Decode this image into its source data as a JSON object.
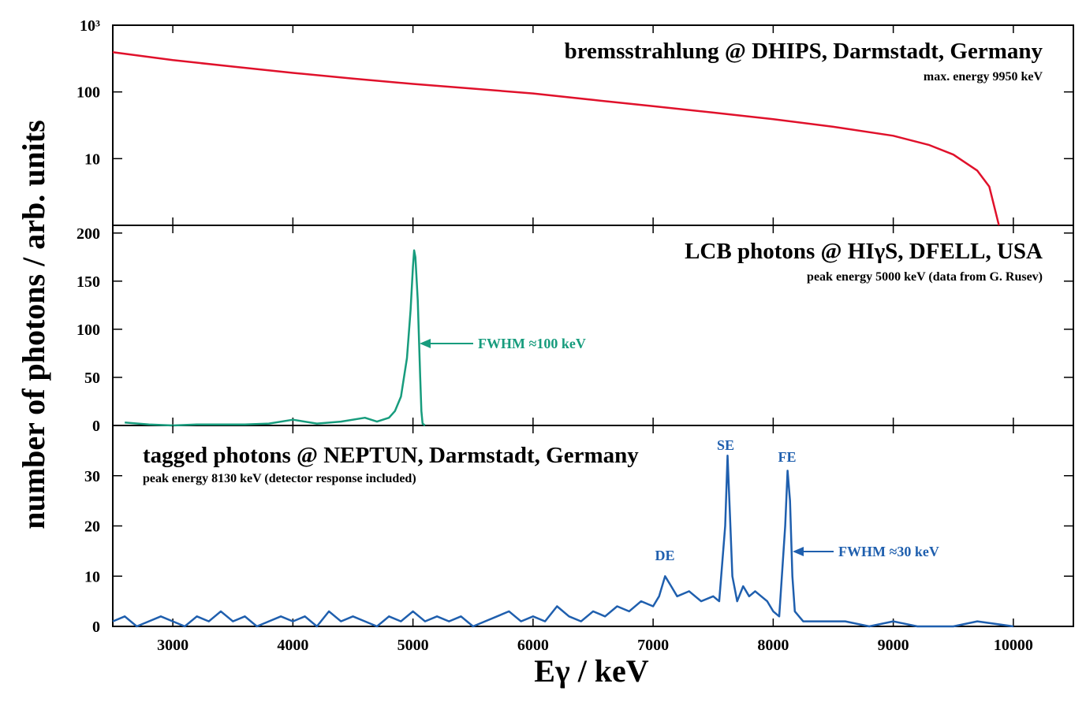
{
  "xlabel": "Eγ / keV",
  "ylabel": "number of photons / arb. units",
  "chart_data": [
    {
      "type": "line",
      "title": "bremsstrahlung @ DHIPS, Darmstadt, Germany",
      "subtitle": "max. energy 9950 keV",
      "log_scale": true,
      "color": "#e0112b",
      "xlim": [
        2500,
        10500
      ],
      "ylim": [
        1,
        1000
      ],
      "yticks": [
        {
          "value": 1000,
          "label": "10³"
        },
        100,
        10
      ],
      "x": [
        2500,
        3000,
        3500,
        4000,
        4500,
        5000,
        5500,
        6000,
        6500,
        7000,
        7500,
        8000,
        8500,
        9000,
        9300,
        9500,
        9700,
        9800,
        9880
      ],
      "values": [
        394,
        300,
        240,
        193,
        158,
        132,
        112,
        95,
        76,
        61,
        49,
        39,
        30,
        22,
        16,
        11.5,
        6.6,
        3.8,
        1
      ],
      "annotations": []
    },
    {
      "type": "line",
      "title": "LCB photons @ HIγS, DFELL, USA",
      "subtitle": "peak energy 5000 keV (data from G. Rusev)",
      "log_scale": false,
      "color": "#179c7d",
      "xlim": [
        2500,
        10500
      ],
      "ylim": [
        0,
        208
      ],
      "yticks": [
        0,
        50,
        100,
        150,
        200
      ],
      "x": [
        2600,
        2800,
        3000,
        3200,
        3400,
        3600,
        3800,
        4000,
        4200,
        4400,
        4600,
        4700,
        4800,
        4850,
        4900,
        4950,
        4980,
        5000,
        5010,
        5020,
        5040,
        5060,
        5070,
        5080,
        5100
      ],
      "values": [
        3,
        1,
        0,
        1,
        1,
        1,
        2,
        6,
        2,
        4,
        8,
        4,
        8,
        15,
        30,
        70,
        120,
        165,
        182,
        175,
        130,
        50,
        15,
        2,
        0
      ],
      "annotations": [
        "FWHM ≈100 keV"
      ]
    },
    {
      "type": "line",
      "title": "tagged photons @ NEPTUN, Darmstadt, Germany",
      "subtitle": "peak energy 8130 keV (detector response included)",
      "log_scale": false,
      "color": "#1f5fae",
      "xlim": [
        2500,
        10500
      ],
      "ylim": [
        0,
        40
      ],
      "yticks": [
        0,
        10,
        20,
        30
      ],
      "xticks": [
        3000,
        4000,
        5000,
        6000,
        7000,
        8000,
        9000,
        10000
      ],
      "x": [
        2500,
        2600,
        2700,
        2800,
        2900,
        3000,
        3100,
        3200,
        3300,
        3400,
        3500,
        3600,
        3700,
        3800,
        3900,
        4000,
        4100,
        4200,
        4300,
        4400,
        4500,
        4600,
        4700,
        4800,
        4900,
        5000,
        5100,
        5200,
        5300,
        5400,
        5500,
        5600,
        5700,
        5800,
        5900,
        6000,
        6100,
        6200,
        6300,
        6400,
        6500,
        6600,
        6700,
        6800,
        6900,
        7000,
        7050,
        7100,
        7150,
        7200,
        7300,
        7400,
        7500,
        7550,
        7600,
        7620,
        7640,
        7660,
        7700,
        7750,
        7800,
        7850,
        7900,
        7950,
        8000,
        8050,
        8100,
        8120,
        8140,
        8160,
        8180,
        8250,
        8400,
        8600,
        8800,
        9000,
        9200,
        9500,
        9700,
        10000
      ],
      "values": [
        1,
        2,
        0,
        1,
        2,
        1,
        0,
        2,
        1,
        3,
        1,
        2,
        0,
        1,
        2,
        1,
        2,
        0,
        3,
        1,
        2,
        1,
        0,
        2,
        1,
        3,
        1,
        2,
        1,
        2,
        0,
        1,
        2,
        3,
        1,
        2,
        1,
        4,
        2,
        1,
        3,
        2,
        4,
        3,
        5,
        4,
        6,
        10,
        8,
        6,
        7,
        5,
        6,
        5,
        20,
        34,
        22,
        10,
        5,
        8,
        6,
        7,
        6,
        5,
        3,
        2,
        20,
        31,
        25,
        10,
        3,
        1,
        1,
        1,
        0,
        1,
        0,
        0,
        1,
        0
      ],
      "annotations": [
        "DE",
        "SE",
        "FE",
        "FWHM ≈30 keV"
      ]
    }
  ]
}
